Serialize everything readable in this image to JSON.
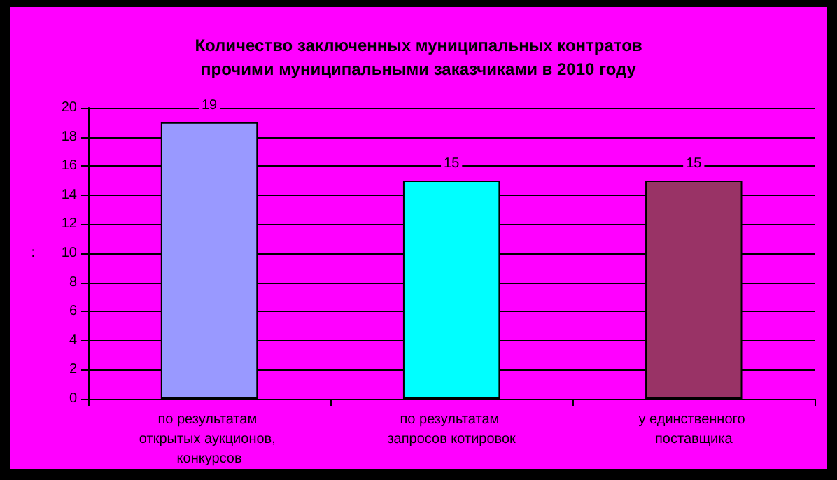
{
  "chart_data": {
    "type": "bar",
    "title": "Количество заключенных муниципальных контратов\nпрочими муниципальными заказчиками в 2010 году",
    "ylabel": ":",
    "categories": [
      "по результатам открытых аукционов, конкурсов",
      "по результатам запросов котировок",
      "у единственного поставщика"
    ],
    "values": [
      19,
      15,
      15
    ],
    "colors": [
      "#9999ff",
      "#00ffff",
      "#993366"
    ],
    "ylim": [
      0,
      20
    ],
    "yticks": [
      0,
      2,
      4,
      6,
      8,
      10,
      12,
      14,
      16,
      18,
      20
    ],
    "grid": "y",
    "data_labels": true
  }
}
